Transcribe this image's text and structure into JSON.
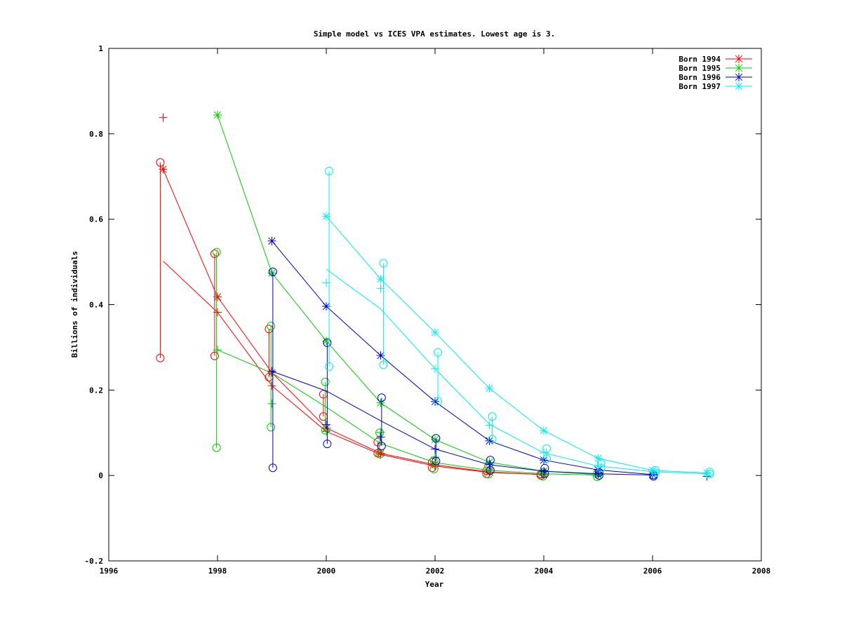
{
  "chart_data": {
    "type": "line",
    "title": "Simple model vs ICES VPA estimates. Lowest age is 3.",
    "xlabel": "Year",
    "ylabel": "Billions of individuals",
    "xlim": [
      1996,
      2008
    ],
    "ylim": [
      -0.2,
      1
    ],
    "x_ticks": [
      1996,
      1998,
      2000,
      2002,
      2004,
      2006,
      2008
    ],
    "y_ticks": [
      -0.2,
      0,
      0.2,
      0.4,
      0.6,
      0.8,
      1
    ],
    "x_tick_labels": [
      "1996",
      "1998",
      "2000",
      "2002",
      "2004",
      "2006",
      "2008"
    ],
    "y_tick_labels": [
      "-0.2",
      "0",
      "0.2",
      "0.4",
      "0.6",
      "0.8",
      "1"
    ],
    "legend_position": "top-right",
    "grid": false,
    "series": [
      {
        "name": "Born 1994",
        "color": "#ff0000",
        "vpa_points": [
          [
            1997,
            0.717
          ],
          [
            1998,
            0.418
          ],
          [
            1999,
            0.241
          ],
          [
            2000,
            0.111
          ],
          [
            2001,
            0.052
          ],
          [
            2002,
            0.025
          ],
          [
            2003,
            0.008
          ],
          [
            2004,
            0.002
          ]
        ],
        "model_line": [
          [
            1997,
            0.502
          ],
          [
            1998,
            0.382
          ],
          [
            1999,
            0.21
          ],
          [
            2000,
            0.103
          ],
          [
            2001,
            0.049
          ],
          [
            2002,
            0.022
          ],
          [
            2003,
            0.007
          ],
          [
            2004,
            0.002
          ]
        ],
        "plus_markers": [
          [
            1997,
            0.838
          ],
          [
            1998,
            0.382
          ],
          [
            1999,
            0.21
          ],
          [
            2000,
            0.103
          ],
          [
            2001,
            0.049
          ],
          [
            2002,
            0.022
          ],
          [
            2003,
            0.007
          ],
          [
            2004,
            0.002
          ]
        ],
        "intervals": [
          {
            "x": 1997,
            "low": 0.275,
            "high": 0.733
          },
          {
            "x": 1998,
            "low": 0.28,
            "high": 0.519
          },
          {
            "x": 1999,
            "low": 0.23,
            "high": 0.343
          },
          {
            "x": 2000,
            "low": 0.138,
            "high": 0.19
          },
          {
            "x": 2001,
            "low": 0.052,
            "high": 0.078
          },
          {
            "x": 2002,
            "low": 0.018,
            "high": 0.031
          },
          {
            "x": 2003,
            "low": 0.004,
            "high": 0.011
          },
          {
            "x": 2004,
            "low": 0.0,
            "high": 0.003
          }
        ]
      },
      {
        "name": "Born 1995",
        "color": "#00cc00",
        "vpa_points": [
          [
            1998,
            0.844
          ],
          [
            1999,
            0.474
          ],
          [
            2000,
            0.315
          ],
          [
            2001,
            0.17
          ],
          [
            2002,
            0.084
          ],
          [
            2003,
            0.031
          ],
          [
            2004,
            0.01
          ],
          [
            2005,
            0.002
          ]
        ],
        "model_line": [
          [
            1998,
            0.294
          ],
          [
            1999,
            0.24
          ],
          [
            2000,
            0.16
          ],
          [
            2001,
            0.075
          ],
          [
            2002,
            0.03
          ],
          [
            2003,
            0.012
          ],
          [
            2004,
            0.004
          ],
          [
            2005,
            0.001
          ]
        ],
        "plus_markers": [
          [
            1998,
            0.294
          ],
          [
            1999,
            0.168
          ],
          [
            2000,
            0.103
          ],
          [
            2001,
            0.101
          ],
          [
            2002,
            0.043
          ],
          [
            2003,
            0.012
          ],
          [
            2004,
            0.004
          ],
          [
            2005,
            0.001
          ]
        ],
        "intervals": [
          {
            "x": 1998,
            "low": 0.065,
            "high": 0.523
          },
          {
            "x": 1999,
            "low": 0.113,
            "high": 0.35
          },
          {
            "x": 2000,
            "low": 0.106,
            "high": 0.219
          },
          {
            "x": 2001,
            "low": 0.05,
            "high": 0.1
          },
          {
            "x": 2002,
            "low": 0.015,
            "high": 0.035
          },
          {
            "x": 2003,
            "low": 0.003,
            "high": 0.022
          },
          {
            "x": 2004,
            "low": -0.002,
            "high": 0.007
          },
          {
            "x": 2005,
            "low": -0.003,
            "high": 0.004
          }
        ]
      },
      {
        "name": "Born 1996",
        "color": "#0000cc",
        "vpa_points": [
          [
            1999,
            0.549
          ],
          [
            2000,
            0.396
          ],
          [
            2001,
            0.281
          ],
          [
            2002,
            0.173
          ],
          [
            2003,
            0.081
          ],
          [
            2004,
            0.036
          ],
          [
            2005,
            0.013
          ],
          [
            2006,
            0.002
          ]
        ],
        "model_line": [
          [
            1999,
            0.244
          ],
          [
            2000,
            0.198
          ],
          [
            2001,
            0.128
          ],
          [
            2002,
            0.062
          ],
          [
            2003,
            0.025
          ],
          [
            2004,
            0.01
          ],
          [
            2005,
            0.004
          ],
          [
            2006,
            0.001
          ]
        ],
        "plus_markers": [
          [
            1999,
            0.244
          ],
          [
            2000,
            0.119
          ],
          [
            2001,
            0.09
          ],
          [
            2002,
            0.062
          ],
          [
            2003,
            0.025
          ],
          [
            2004,
            0.01
          ],
          [
            2005,
            0.004
          ],
          [
            2006,
            0.001
          ],
          [
            2007,
            -0.002
          ]
        ],
        "intervals": [
          {
            "x": 1999,
            "low": 0.018,
            "high": 0.477
          },
          {
            "x": 2000,
            "low": 0.074,
            "high": 0.311
          },
          {
            "x": 2001,
            "low": 0.069,
            "high": 0.182
          },
          {
            "x": 2002,
            "low": 0.034,
            "high": 0.087
          },
          {
            "x": 2003,
            "low": 0.012,
            "high": 0.036
          },
          {
            "x": 2004,
            "low": 0.004,
            "high": 0.017
          },
          {
            "x": 2005,
            "low": 0.0,
            "high": 0.007
          },
          {
            "x": 2006,
            "low": -0.002,
            "high": 0.001
          }
        ]
      },
      {
        "name": "Born 1997",
        "color": "#00eeee",
        "vpa_points": [
          [
            2000,
            0.607
          ],
          [
            2001,
            0.46
          ],
          [
            2002,
            0.335
          ],
          [
            2003,
            0.204
          ],
          [
            2004,
            0.105
          ],
          [
            2005,
            0.04
          ],
          [
            2006,
            0.012
          ],
          [
            2007,
            0.006
          ]
        ],
        "model_line": [
          [
            2000,
            0.483
          ],
          [
            2001,
            0.39
          ],
          [
            2002,
            0.25
          ],
          [
            2003,
            0.12
          ],
          [
            2004,
            0.053
          ],
          [
            2005,
            0.022
          ],
          [
            2006,
            0.009
          ],
          [
            2007,
            0.004
          ]
        ],
        "plus_markers": [
          [
            2000,
            0.451
          ],
          [
            2001,
            0.438
          ],
          [
            2002,
            0.25
          ],
          [
            2003,
            0.118
          ],
          [
            2004,
            0.053
          ],
          [
            2005,
            0.022
          ],
          [
            2006,
            0.009
          ],
          [
            2007,
            0.004
          ]
        ],
        "intervals": [
          {
            "x": 2000,
            "low": 0.255,
            "high": 0.713
          },
          {
            "x": 2001,
            "low": 0.259,
            "high": 0.497
          },
          {
            "x": 2002,
            "low": 0.174,
            "high": 0.288
          },
          {
            "x": 2003,
            "low": 0.085,
            "high": 0.138
          },
          {
            "x": 2004,
            "low": 0.039,
            "high": 0.063
          },
          {
            "x": 2005,
            "low": 0.018,
            "high": 0.028
          },
          {
            "x": 2006,
            "low": 0.006,
            "high": 0.012
          },
          {
            "x": 2007,
            "low": 0.003,
            "high": 0.008
          }
        ]
      }
    ]
  }
}
